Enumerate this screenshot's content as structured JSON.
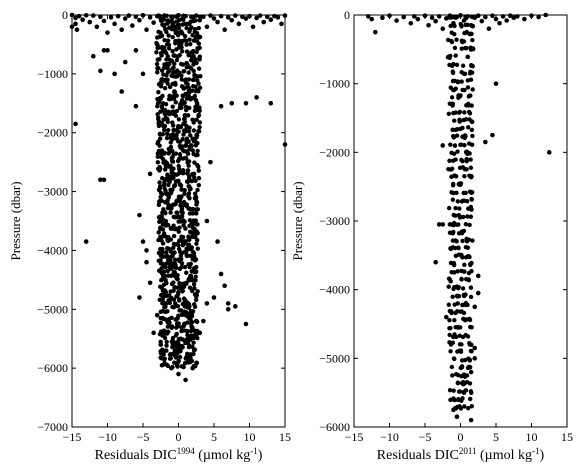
{
  "chart_data": [
    {
      "type": "scatter",
      "xlabel": {
        "prefix": "Residuals DIC",
        "sup": "1994",
        "suffix": " (µmol kg",
        "unit_sup": "-1",
        "close": ")"
      },
      "ylabel": "Pressure (dbar)",
      "xlim": [
        -15,
        15
      ],
      "ylim": [
        -7000,
        0
      ],
      "xticks": [
        -15,
        -10,
        -5,
        0,
        5,
        10,
        15
      ],
      "yticks": [
        0,
        -1000,
        -2000,
        -3000,
        -4000,
        -5000,
        -6000,
        -7000
      ],
      "tick_labels_x": [
        "−15",
        "−10",
        "−5",
        "0",
        "5",
        "10",
        "15"
      ],
      "tick_labels_y": [
        "0",
        "−1000",
        "−2000",
        "−3000",
        "−4000",
        "−5000",
        "−6000",
        "−7000"
      ],
      "grid": false,
      "marker_color": "#000000",
      "series": [
        {
          "points": [
            [
              -15,
              0
            ],
            [
              -14.5,
              -50
            ],
            [
              -14.5,
              -150
            ],
            [
              -14.3,
              -250
            ],
            [
              -14,
              -20
            ],
            [
              -13.5,
              -80
            ],
            [
              -13,
              -5
            ],
            [
              -12.5,
              -120
            ],
            [
              -12,
              -10
            ],
            [
              -11.5,
              -200
            ],
            [
              -11,
              -30
            ],
            [
              -10.5,
              -100
            ],
            [
              -10,
              -300
            ],
            [
              -10,
              -600
            ],
            [
              -9.5,
              -40
            ],
            [
              -9,
              -150
            ],
            [
              -8.5,
              -20
            ],
            [
              -8,
              -250
            ],
            [
              -7.5,
              -60
            ],
            [
              -7,
              -10
            ],
            [
              -6.5,
              -180
            ],
            [
              -6,
              -30
            ],
            [
              -5.5,
              -90
            ],
            [
              -5,
              -5
            ],
            [
              -4.5,
              -250
            ],
            [
              -4,
              -40
            ],
            [
              -3.5,
              -130
            ],
            [
              -3,
              -20
            ],
            [
              -2.5,
              -60
            ],
            [
              -2,
              -10
            ],
            [
              -1.5,
              -100
            ],
            [
              -1,
              -30
            ],
            [
              -0.5,
              -200
            ],
            [
              0,
              -5
            ],
            [
              0.5,
              -70
            ],
            [
              1,
              -20
            ],
            [
              1.5,
              -150
            ],
            [
              2,
              -40
            ],
            [
              2.5,
              -10
            ],
            [
              3,
              -90
            ],
            [
              3.5,
              -30
            ],
            [
              4,
              -200
            ],
            [
              4.5,
              -10
            ],
            [
              5,
              -60
            ],
            [
              5.5,
              -120
            ],
            [
              6,
              -20
            ],
            [
              6.5,
              -250
            ],
            [
              7,
              -40
            ],
            [
              7.5,
              -90
            ],
            [
              8,
              -10
            ],
            [
              8.5,
              -150
            ],
            [
              9,
              -30
            ],
            [
              9.5,
              -60
            ],
            [
              10,
              -20
            ],
            [
              10.5,
              -200
            ],
            [
              11,
              -50
            ],
            [
              11.5,
              -10
            ],
            [
              12,
              -120
            ],
            [
              12.5,
              -30
            ],
            [
              13,
              -80
            ],
            [
              13.5,
              -20
            ],
            [
              14,
              -40
            ],
            [
              14.5,
              -150
            ],
            [
              15,
              -10
            ],
            [
              -15,
              -200
            ],
            [
              -12,
              -700
            ],
            [
              -11,
              -950
            ],
            [
              -10.5,
              -600
            ],
            [
              -9,
              -1000
            ],
            [
              -8,
              -1300
            ],
            [
              -7.5,
              -800
            ],
            [
              -6,
              -600
            ],
            [
              -5,
              -1000
            ],
            [
              -14.5,
              -1850
            ],
            [
              -13,
              -3850
            ],
            [
              -11,
              -2800
            ],
            [
              -10.5,
              -2800
            ],
            [
              -6,
              -1550
            ],
            [
              -5.5,
              -4800
            ],
            [
              -5,
              -3850
            ],
            [
              -4.5,
              -4000
            ],
            [
              6,
              -4400
            ],
            [
              6.5,
              -4600
            ],
            [
              7,
              -4900
            ],
            [
              7,
              -5000
            ],
            [
              7.5,
              -1500
            ],
            [
              9.5,
              -1500
            ],
            [
              11,
              -1400
            ],
            [
              13,
              -1500
            ],
            [
              15,
              -2200
            ],
            [
              8,
              -4950
            ],
            [
              9.5,
              -5250
            ],
            [
              6,
              -1550
            ],
            [
              5.5,
              -3850
            ],
            [
              5,
              -4800
            ],
            [
              4,
              -3500
            ],
            [
              -4,
              -4550
            ],
            [
              -3.5,
              -5400
            ],
            [
              -2.5,
              -5600
            ],
            [
              -2,
              -5850
            ],
            [
              -1,
              -6000
            ],
            [
              0,
              -6100
            ],
            [
              1,
              -6200
            ],
            [
              2,
              -6000
            ],
            [
              -0.5,
              -5700
            ],
            [
              1.5,
              -5500
            ],
            [
              2.5,
              -5200
            ],
            [
              -3,
              -5100
            ],
            [
              3,
              -5400
            ],
            [
              3.5,
              -5200
            ],
            [
              4,
              -4900
            ],
            [
              -4.5,
              -4200
            ],
            [
              -5.5,
              -3400
            ],
            [
              4.5,
              -2500
            ],
            [
              -4,
              -2700
            ]
          ]
        }
      ]
    },
    {
      "type": "scatter",
      "xlabel": {
        "prefix": "Residuals DIC",
        "sup": "2011",
        "suffix": " (µmol kg",
        "unit_sup": "-1",
        "close": ")"
      },
      "ylabel": "Pressure (dbar)",
      "xlim": [
        -15,
        15
      ],
      "ylim": [
        -6000,
        0
      ],
      "xticks": [
        -15,
        -10,
        -5,
        0,
        5,
        10,
        15
      ],
      "yticks": [
        0,
        -1000,
        -2000,
        -3000,
        -4000,
        -5000,
        -6000
      ],
      "tick_labels_x": [
        "−15",
        "−10",
        "−5",
        "0",
        "5",
        "10",
        "15"
      ],
      "tick_labels_y": [
        "0",
        "−1000",
        "−2000",
        "−3000",
        "−4000",
        "−5000",
        "−6000"
      ],
      "grid": false,
      "marker_color": "#000000",
      "series": [
        {
          "points": [
            [
              -13,
              -20
            ],
            [
              -12.5,
              -60
            ],
            [
              -12,
              -250
            ],
            [
              -11,
              -40
            ],
            [
              -10,
              -10
            ],
            [
              -9,
              -80
            ],
            [
              -8,
              -30
            ],
            [
              -7,
              -120
            ],
            [
              -6.5,
              -20
            ],
            [
              -6,
              -60
            ],
            [
              -5,
              -10
            ],
            [
              -4.5,
              -150
            ],
            [
              -4,
              -40
            ],
            [
              -3.5,
              -90
            ],
            [
              -3,
              -20
            ],
            [
              -2.5,
              -200
            ],
            [
              -2,
              -50
            ],
            [
              -1.5,
              -10
            ],
            [
              -1,
              -120
            ],
            [
              -0.5,
              -30
            ],
            [
              0,
              -5
            ],
            [
              0.5,
              -80
            ],
            [
              1,
              -20
            ],
            [
              1.5,
              -150
            ],
            [
              2,
              -40
            ],
            [
              2.5,
              -10
            ],
            [
              3,
              -90
            ],
            [
              3.5,
              -30
            ],
            [
              4,
              -200
            ],
            [
              4.5,
              -10
            ],
            [
              5,
              -60
            ],
            [
              5.5,
              -120
            ],
            [
              6,
              -20
            ],
            [
              6.5,
              -80
            ],
            [
              7,
              -10
            ],
            [
              7.5,
              -40
            ],
            [
              8,
              -20
            ],
            [
              9,
              -60
            ],
            [
              10,
              -10
            ],
            [
              11,
              -30
            ],
            [
              12,
              0
            ],
            [
              5,
              -1000
            ],
            [
              4.5,
              -1750
            ],
            [
              3.5,
              -1850
            ],
            [
              -2.5,
              -1900
            ],
            [
              12.5,
              -2000
            ],
            [
              -3,
              -3050
            ],
            [
              -2.5,
              -3050
            ],
            [
              -3.5,
              -3600
            ],
            [
              2.5,
              -3800
            ],
            [
              2.5,
              -4050
            ],
            [
              2,
              -4250
            ],
            [
              -2,
              -4400
            ],
            [
              2,
              -4850
            ],
            [
              2,
              -5000
            ],
            [
              1.5,
              -5200
            ],
            [
              -1,
              -5600
            ],
            [
              -1,
              -5750
            ],
            [
              -0.5,
              -5850
            ],
            [
              1.5,
              -5900
            ],
            [
              0.5,
              -5500
            ]
          ]
        }
      ]
    }
  ]
}
